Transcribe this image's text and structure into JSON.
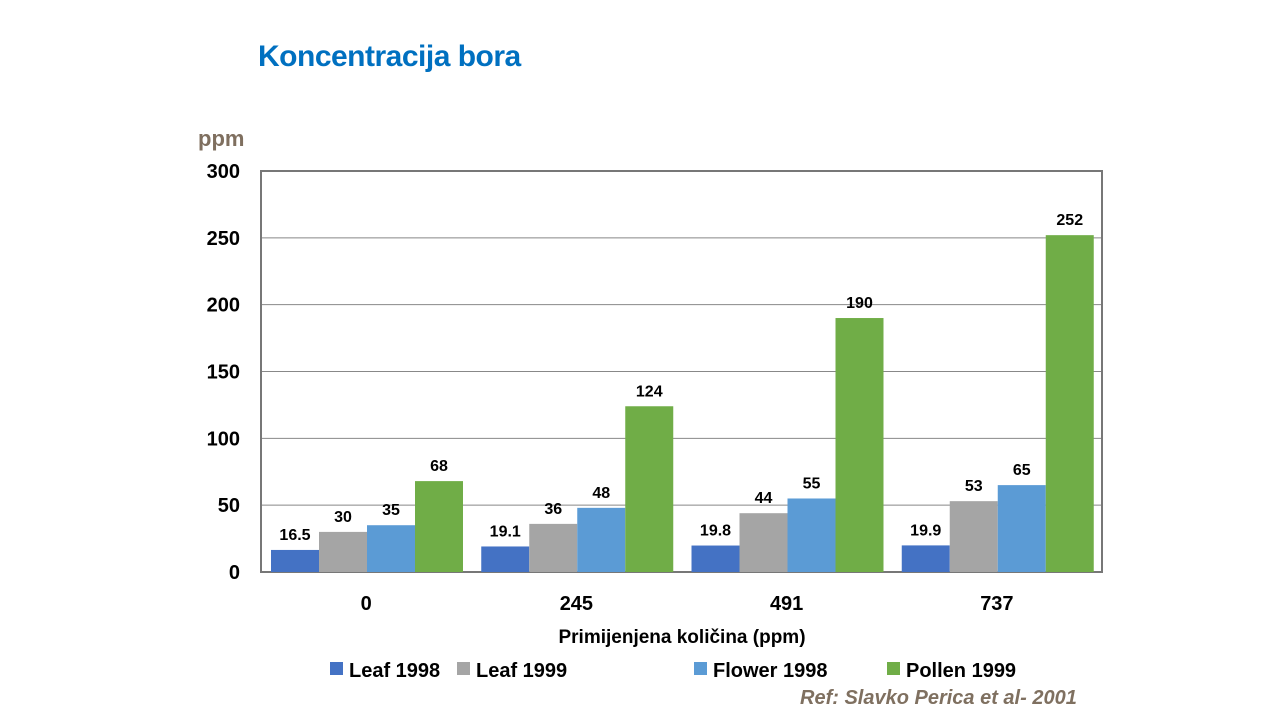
{
  "chart_data": {
    "type": "bar",
    "title": "Koncentracija bora",
    "xlabel": "Primijenjena količina (ppm)",
    "ylabel": "ppm",
    "ylim": [
      0,
      300
    ],
    "yticks": [
      0,
      50,
      100,
      150,
      200,
      250,
      300
    ],
    "grid": true,
    "legend_position": "bottom",
    "categories": [
      "0",
      "245",
      "491",
      "737"
    ],
    "series": [
      {
        "name": "Leaf 1998",
        "color": "#4472C4",
        "values": [
          16.5,
          19.1,
          19.8,
          19.9
        ]
      },
      {
        "name": "Leaf 1999",
        "color": "#A5A5A5",
        "values": [
          30,
          36,
          44,
          53
        ]
      },
      {
        "name": "Flower  1998",
        "color": "#5B9BD5",
        "values": [
          35,
          48,
          55,
          65
        ]
      },
      {
        "name": "Pollen 1999",
        "color": "#70AD47",
        "values": [
          68,
          124,
          190,
          252
        ]
      }
    ]
  },
  "reference": "Ref: Slavko Perica et al- 2001"
}
